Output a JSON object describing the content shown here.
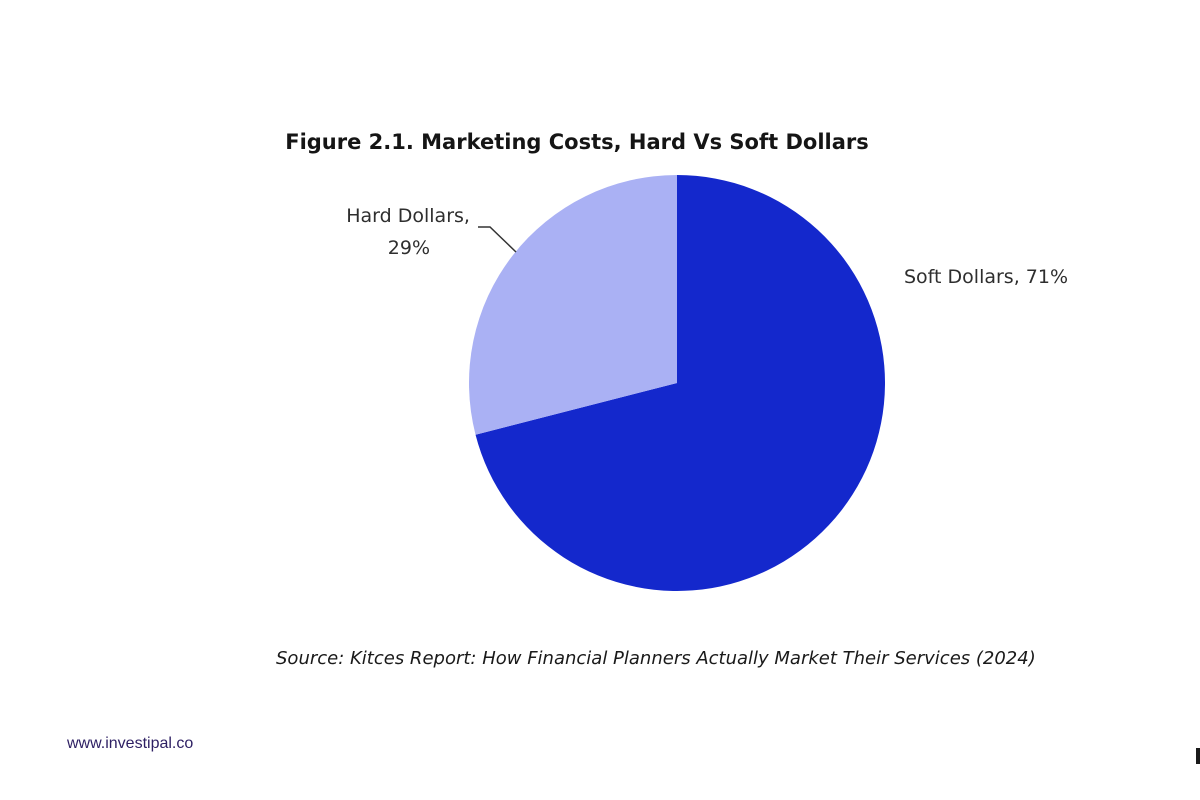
{
  "chart_data": {
    "type": "pie",
    "title": "Figure 2.1. Marketing Costs, Hard Vs Soft Dollars",
    "slices": [
      {
        "name": "Soft Dollars",
        "value": 71,
        "label": "Soft Dollars, 71%",
        "color": "#1428cc"
      },
      {
        "name": "Hard Dollars",
        "value": 29,
        "label_lines": [
          "Hard Dollars,",
          "29%"
        ],
        "color": "#aab1f4"
      }
    ],
    "start_angle": "12 o'clock",
    "direction": "clockwise",
    "leader_line_color": "#333333"
  },
  "source": "Source: Kitces Report: How Financial Planners Actually Market Their Services (2024)",
  "footer": {
    "website": "www.investipal.co"
  }
}
